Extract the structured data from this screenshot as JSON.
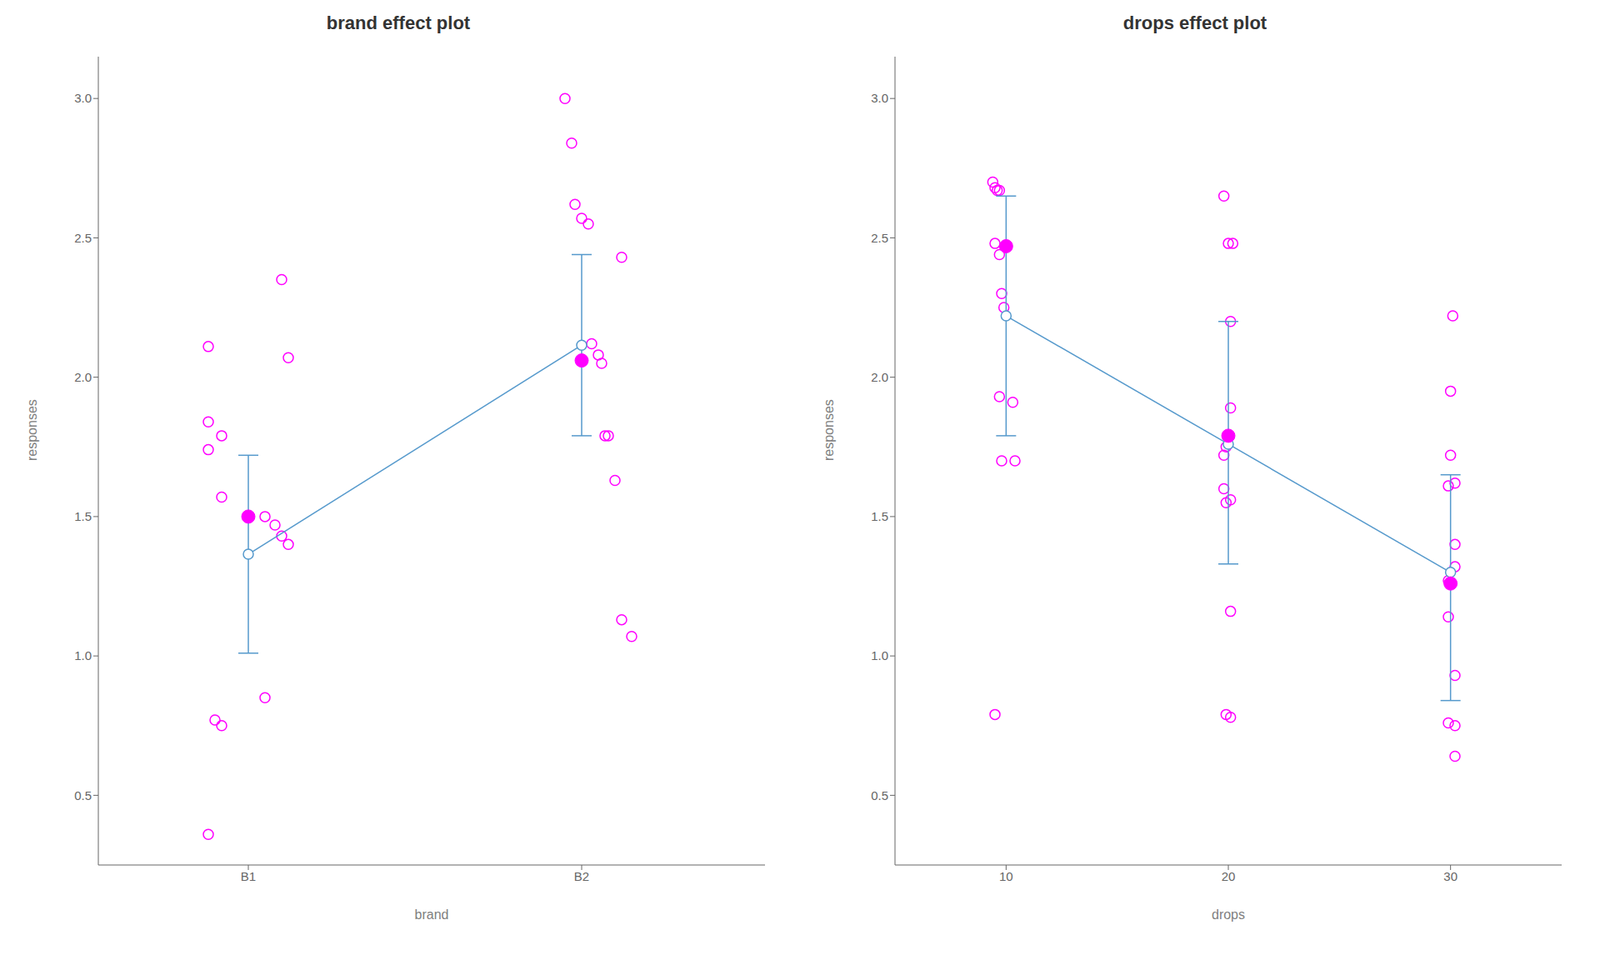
{
  "chart_data": [
    {
      "type": "scatter",
      "title": "brand effect plot",
      "xlabel": "brand",
      "ylabel": "responses",
      "xlim": [
        0.55,
        2.55
      ],
      "xticks": [
        {
          "value": 1,
          "label": "B1"
        },
        {
          "value": 2,
          "label": "B2"
        }
      ],
      "ylim": [
        0.25,
        3.15
      ],
      "yticks": [
        0.5,
        {
          "value": 1,
          "label": "1.0"
        },
        1.5,
        {
          "value": 2,
          "label": "2.0"
        },
        2.5,
        {
          "value": 3,
          "label": "3.0"
        }
      ],
      "grid": false,
      "series": [
        {
          "type": "scatter",
          "marker": "open_circle",
          "color": "#FF00FF",
          "x": [
            0.88,
            0.88,
            0.92,
            0.88,
            0.92,
            1.0,
            1.05,
            1.08,
            1.1,
            1.1,
            1.12,
            1.12,
            0.9,
            0.92,
            1.05,
            0.88
          ],
          "values": [
            2.11,
            1.84,
            1.79,
            1.74,
            1.57,
            1.5,
            1.5,
            1.47,
            1.43,
            2.35,
            2.07,
            1.4,
            0.77,
            0.75,
            0.85,
            0.36
          ]
        },
        {
          "type": "scatter",
          "marker": "open_circle",
          "color": "#FF00FF",
          "x": [
            1.95,
            1.97,
            1.98,
            2.0,
            2.02,
            2.03,
            2.05,
            2.06,
            2.07,
            2.08,
            2.1,
            2.12,
            2.12,
            2.15
          ],
          "values": [
            3.0,
            2.84,
            2.62,
            2.57,
            2.55,
            2.12,
            2.08,
            2.05,
            1.79,
            1.79,
            1.63,
            2.43,
            1.13,
            1.07
          ]
        },
        {
          "type": "line",
          "marker": "open_circle",
          "color": "#5599CC",
          "x": [
            1,
            2
          ],
          "values": [
            1.365,
            2.115
          ],
          "ci_low": [
            1.01,
            1.79
          ],
          "ci_high": [
            1.72,
            2.44
          ]
        },
        {
          "type": "scatter",
          "marker": "circle",
          "color": "#FF00FF",
          "x": [
            1,
            2
          ],
          "values": [
            1.5,
            2.06
          ]
        }
      ]
    },
    {
      "type": "scatter",
      "title": "drops effect plot",
      "xlabel": "drops",
      "ylabel": "responses",
      "xlim": [
        5,
        35
      ],
      "xticks": [
        10,
        20,
        30
      ],
      "ylim": [
        0.25,
        3.15
      ],
      "yticks": [
        0.5,
        {
          "value": 1,
          "label": "1.0"
        },
        1.5,
        {
          "value": 2,
          "label": "2.0"
        },
        2.5,
        {
          "value": 3,
          "label": "3.0"
        }
      ],
      "grid": false,
      "series": [
        {
          "type": "scatter",
          "marker": "open_circle",
          "color": "#FF00FF",
          "x": [
            9.4,
            9.5,
            9.6,
            9.7,
            9.5,
            9.7,
            9.8,
            9.9,
            9.7,
            10.3,
            9.8,
            10.4,
            9.5
          ],
          "values": [
            2.7,
            2.68,
            2.67,
            2.67,
            2.48,
            2.44,
            2.3,
            2.25,
            1.93,
            1.91,
            1.7,
            1.7,
            0.79
          ]
        },
        {
          "type": "scatter",
          "marker": "open_circle",
          "color": "#FF00FF",
          "x": [
            19.8,
            20.0,
            20.2,
            20.1,
            20.1,
            19.9,
            19.8,
            19.8,
            20.1,
            19.9,
            20.1,
            19.9,
            20.1
          ],
          "values": [
            2.65,
            2.48,
            2.48,
            2.2,
            1.89,
            1.75,
            1.72,
            1.6,
            1.56,
            1.55,
            1.16,
            0.79,
            0.78
          ]
        },
        {
          "type": "scatter",
          "marker": "open_circle",
          "color": "#FF00FF",
          "x": [
            30.1,
            30.0,
            30.0,
            30.2,
            29.9,
            30.2,
            30.2,
            29.9,
            29.9,
            30.2,
            29.9,
            30.2,
            30.2
          ],
          "values": [
            2.22,
            1.95,
            1.72,
            1.62,
            1.61,
            1.4,
            1.32,
            1.27,
            1.14,
            0.93,
            0.76,
            0.75,
            0.64
          ]
        },
        {
          "type": "line",
          "marker": "open_circle",
          "color": "#5599CC",
          "x": [
            10,
            20,
            30
          ],
          "values": [
            2.22,
            1.76,
            1.3
          ],
          "ci_low": [
            1.79,
            1.33,
            0.84
          ],
          "ci_high": [
            2.65,
            2.2,
            1.65
          ]
        },
        {
          "type": "scatter",
          "marker": "circle",
          "color": "#FF00FF",
          "x": [
            10,
            20,
            30
          ],
          "values": [
            2.47,
            1.79,
            1.26
          ]
        }
      ]
    }
  ]
}
